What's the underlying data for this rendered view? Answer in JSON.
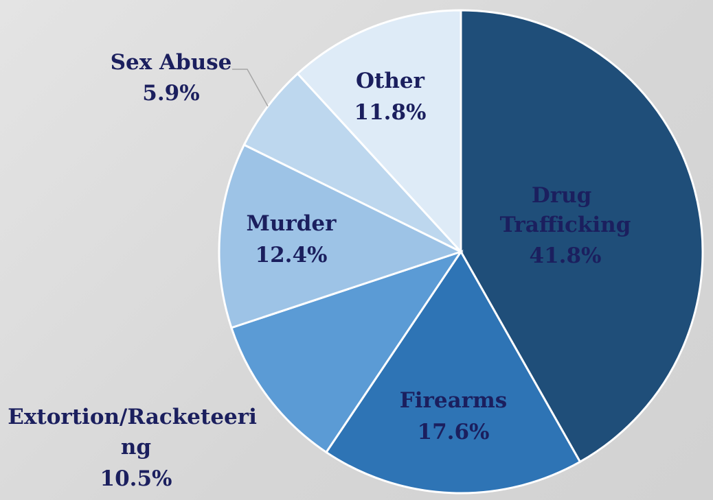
{
  "chart_data": {
    "type": "pie",
    "legend": "none",
    "slices": [
      {
        "label": "Drug Trafficking",
        "value_label": "41.8%",
        "value": 41.8,
        "color": "#1f4e79"
      },
      {
        "label": "Firearms",
        "value_label": "17.6%",
        "value": 17.6,
        "color": "#2e74b5"
      },
      {
        "label": "Extortion/Racketeering",
        "value_label": "10.5%",
        "value": 10.5,
        "color": "#5b9bd5"
      },
      {
        "label": "Murder",
        "value_label": "12.4%",
        "value": 12.4,
        "color": "#9dc3e6"
      },
      {
        "label": "Sex Abuse",
        "value_label": "5.9%",
        "value": 5.9,
        "color": "#bdd7ee"
      },
      {
        "label": "Other",
        "value_label": "11.8%",
        "value": 11.8,
        "color": "#deebf7"
      }
    ]
  }
}
